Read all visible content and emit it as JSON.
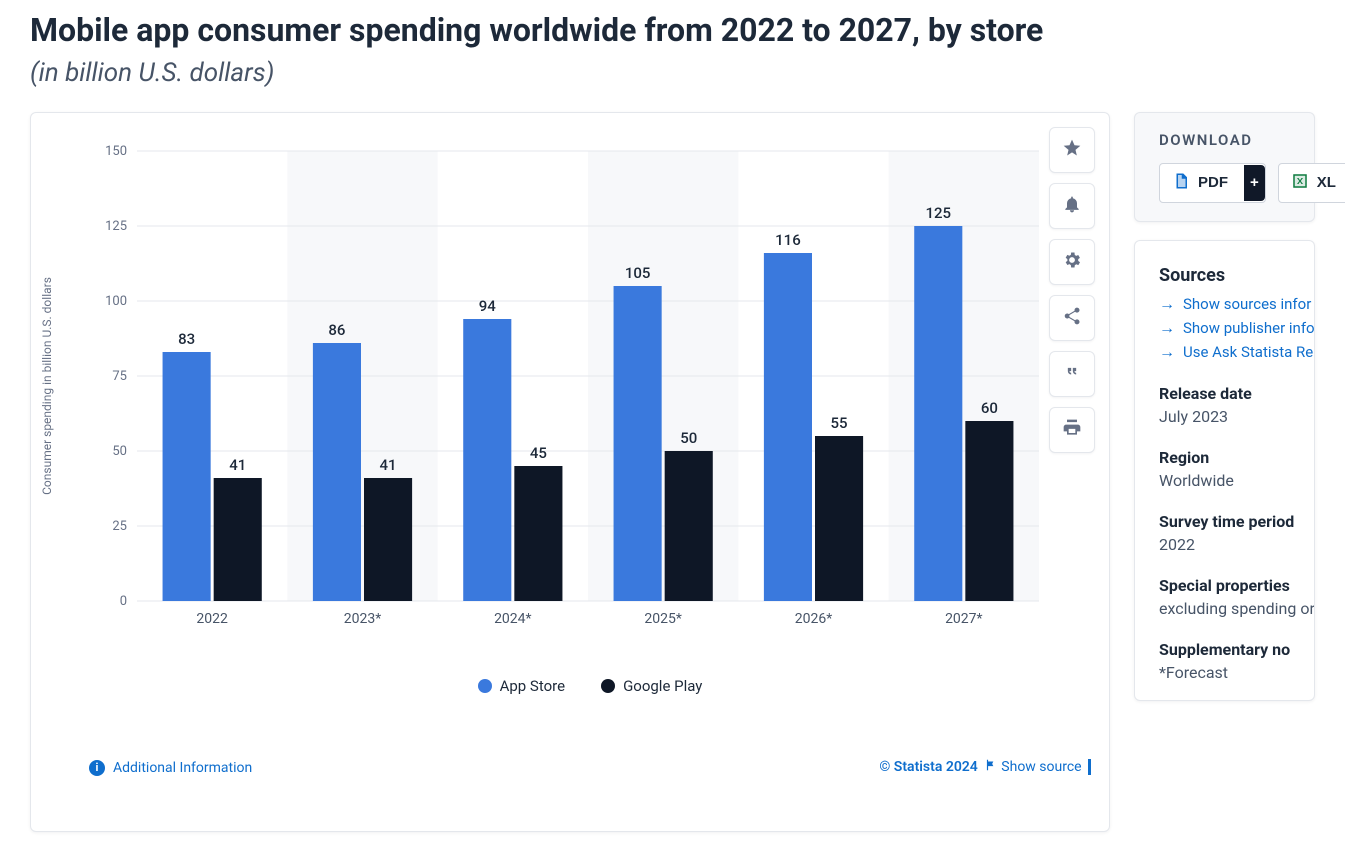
{
  "title": "Mobile app consumer spending worldwide from 2022 to 2027, by store",
  "subtitle": "(in billion U.S. dollars)",
  "chart": {
    "type": "grouped-bar",
    "ylabel": "Consumer spending in billion U.S. dollars",
    "ylim": [
      0,
      150
    ],
    "ytick_step": 25,
    "yticks": [
      0,
      25,
      50,
      75,
      100,
      125,
      150
    ],
    "categories": [
      "2022",
      "2023*",
      "2024*",
      "2025*",
      "2026*",
      "2027*"
    ],
    "series": [
      {
        "name": "App Store",
        "color": "#3a79dd",
        "values": [
          83,
          86,
          94,
          105,
          116,
          125
        ]
      },
      {
        "name": "Google Play",
        "color": "#0e1726",
        "values": [
          41,
          41,
          45,
          50,
          55,
          60
        ]
      }
    ],
    "background_stripe_color": "#f7f8fa",
    "grid_color": "#e4e7ec",
    "plot_background": "#ffffff",
    "tick_label_color": "#667085",
    "category_label_color": "#475467",
    "bar_label_color": "#1d2939",
    "bar_width_ratio": 0.32,
    "bar_gap_ratio": 0.02,
    "label_fontsize": 12,
    "tick_fontsize": 13,
    "category_fontsize": 14,
    "bar_label_fontsize": 15
  },
  "legend": {
    "series1": "App Store",
    "series2": "Google Play"
  },
  "footer": {
    "additional_info": "Additional Information",
    "copyright": "© Statista 2024",
    "show_source": "Show source"
  },
  "toolbar_icons": [
    "star",
    "bell",
    "gear",
    "share",
    "quote",
    "print"
  ],
  "sidebar": {
    "download_heading": "DOWNLOAD",
    "download_buttons": [
      {
        "label": "PDF",
        "icon": "pdf",
        "color": "#0f6ecd",
        "plus": "+"
      },
      {
        "label": "XL",
        "icon": "xls",
        "color": "#107c41",
        "plus": ""
      }
    ],
    "sources_heading": "Sources",
    "source_links": [
      "Show sources infor",
      "Show publisher info",
      "Use Ask Statista Re"
    ],
    "meta": [
      {
        "label": "Release date",
        "value": "July 2023"
      },
      {
        "label": "Region",
        "value": "Worldwide"
      },
      {
        "label": "Survey time period",
        "value": "2022"
      },
      {
        "label": "Special properties",
        "value": "excluding spending or"
      },
      {
        "label": "Supplementary no",
        "value": "*Forecast"
      }
    ]
  }
}
